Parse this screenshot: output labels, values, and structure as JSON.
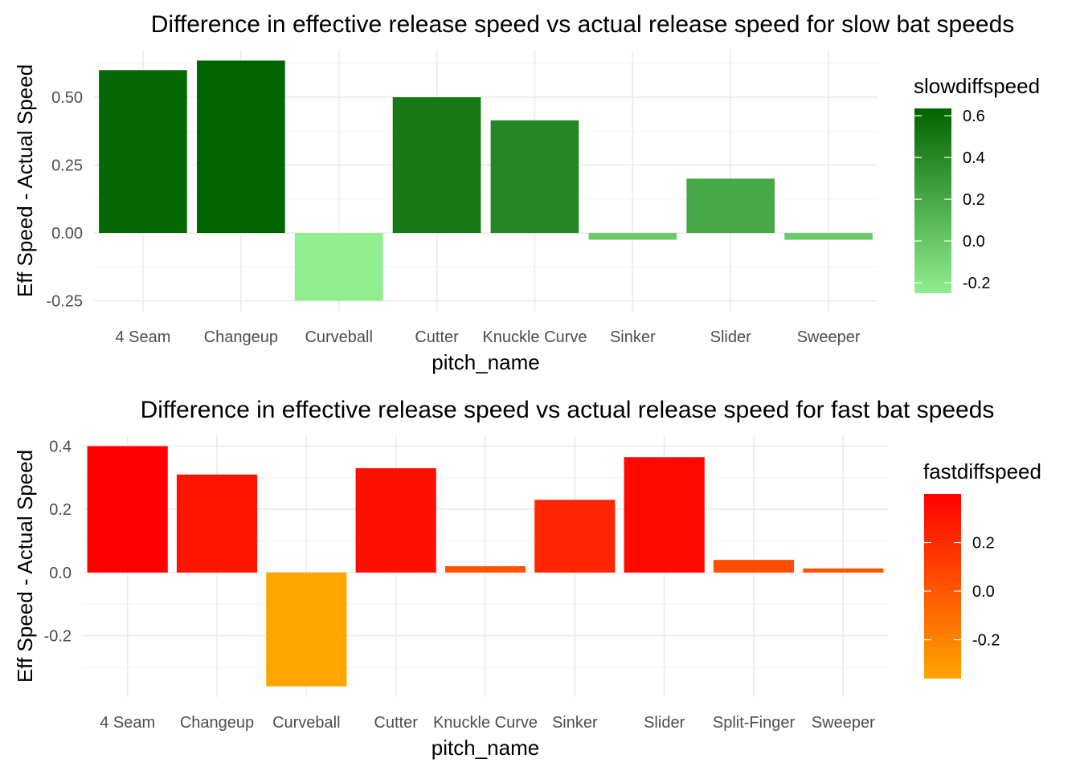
{
  "chart_data": [
    {
      "type": "bar",
      "title": "Difference in effective release speed vs actual release speed for slow bat speeds",
      "xlabel": "pitch_name",
      "ylabel": "Eff Speed - Actual Speed",
      "categories": [
        "4 Seam",
        "Changeup",
        "Curveball",
        "Cutter",
        "Knuckle Curve",
        "Sinker",
        "Slider",
        "Sweeper"
      ],
      "values": [
        0.6,
        0.635,
        -0.25,
        0.5,
        0.415,
        -0.025,
        0.2,
        -0.025
      ],
      "ylim": [
        -0.25,
        0.635
      ],
      "yticks": [
        -0.25,
        0.0,
        0.25,
        0.5
      ],
      "ytick_labels": [
        "-0.25",
        "0.00",
        "0.25",
        "0.50"
      ],
      "grid": true,
      "legend": {
        "title": "slowdiffspeed",
        "position": "right",
        "ticks": [
          0.6,
          0.4,
          0.2,
          0.0,
          -0.2
        ],
        "tick_labels": [
          "0.6",
          "0.4",
          "0.2",
          "0.0",
          "-0.2"
        ],
        "range": [
          -0.25,
          0.635
        ],
        "low_color": "#90ee90",
        "high_color": "#006400"
      }
    },
    {
      "type": "bar",
      "title": "Difference in effective release speed vs actual release speed for fast bat speeds",
      "xlabel": "pitch_name",
      "ylabel": "Eff Speed - Actual Speed",
      "categories": [
        "4 Seam",
        "Changeup",
        "Curveball",
        "Cutter",
        "Knuckle Curve",
        "Sinker",
        "Slider",
        "Split-Finger",
        "Sweeper"
      ],
      "values": [
        0.4,
        0.31,
        -0.36,
        0.33,
        0.02,
        0.23,
        0.365,
        0.04,
        0.013
      ],
      "ylim": [
        -0.36,
        0.4
      ],
      "yticks": [
        -0.2,
        0.0,
        0.2,
        0.4
      ],
      "ytick_labels": [
        "-0.2",
        "0.0",
        "0.2",
        "0.4"
      ],
      "grid": true,
      "legend": {
        "title": "fastdiffspeed",
        "position": "right",
        "ticks": [
          0.2,
          0.0,
          -0.2
        ],
        "tick_labels": [
          "0.2",
          "0.0",
          "-0.2"
        ],
        "range": [
          -0.36,
          0.4
        ],
        "low_color": "#ffa500",
        "high_color": "#ff0000"
      }
    }
  ]
}
